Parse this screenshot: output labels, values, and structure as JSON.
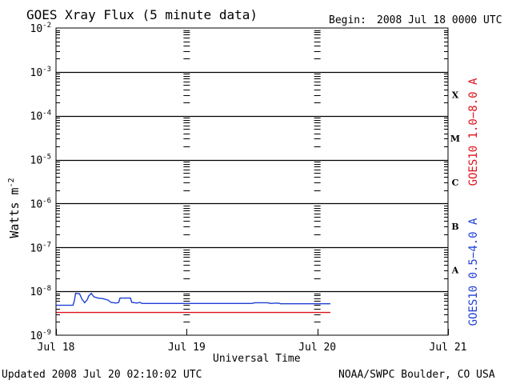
{
  "header": {
    "title": "GOES Xray Flux (5 minute data)",
    "begin_label": "Begin:",
    "begin_value": "2008 Jul 18 0000 UTC"
  },
  "footer": {
    "updated": "Updated 2008 Jul 20 02:10:02 UTC",
    "credit": "NOAA/SWPC Boulder, CO USA"
  },
  "colors": {
    "long_channel": "#e0101a",
    "short_channel": "#1f3fd6",
    "axis": "#000000"
  },
  "chart_data": {
    "type": "line",
    "xlabel": "Universal Time",
    "ylabel": "Watts m",
    "ylabel_superscript": "-2",
    "y_scale": "log",
    "ylim": [
      1e-09,
      0.01
    ],
    "xlim": [
      0,
      3
    ],
    "x_unit": "days since 2008 Jul 18 0000 UTC",
    "grid": "horizontal at each decade",
    "y_ticks": [
      {
        "base": "10",
        "exp": "-9",
        "value": 1e-09
      },
      {
        "base": "10",
        "exp": "-8",
        "value": 1e-08
      },
      {
        "base": "10",
        "exp": "-7",
        "value": 1e-07
      },
      {
        "base": "10",
        "exp": "-6",
        "value": 1e-06
      },
      {
        "base": "10",
        "exp": "-5",
        "value": 1e-05
      },
      {
        "base": "10",
        "exp": "-4",
        "value": 0.0001
      },
      {
        "base": "10",
        "exp": "-3",
        "value": 0.001
      },
      {
        "base": "10",
        "exp": "-2",
        "value": 0.01
      }
    ],
    "x_ticks": [
      {
        "label": "Jul 18",
        "value": 0
      },
      {
        "label": "Jul 19",
        "value": 1
      },
      {
        "label": "Jul 20",
        "value": 2
      },
      {
        "label": "Jul 21",
        "value": 3
      }
    ],
    "flare_classes": [
      {
        "label": "A",
        "value": 3.16e-08
      },
      {
        "label": "B",
        "value": 3.16e-07
      },
      {
        "label": "C",
        "value": 3.16e-06
      },
      {
        "label": "M",
        "value": 3.16e-05
      },
      {
        "label": "X",
        "value": 0.000316
      }
    ],
    "series": [
      {
        "name": "GOES10 1.0−8.0 A",
        "color": "#e0101a",
        "points": [
          [
            0.0,
            3.3e-09
          ],
          [
            2.1,
            3.3e-09
          ]
        ]
      },
      {
        "name": "GOES10 0.5−4.0 A",
        "color": "#1f3fd6",
        "points": [
          [
            0.0,
            4.8e-09
          ],
          [
            0.13,
            4.8e-09
          ],
          [
            0.14,
            6e-09
          ],
          [
            0.15,
            9e-09
          ],
          [
            0.18,
            8.8e-09
          ],
          [
            0.2,
            6.5e-09
          ],
          [
            0.22,
            5.5e-09
          ],
          [
            0.24,
            6.5e-09
          ],
          [
            0.25,
            7.8e-09
          ],
          [
            0.27,
            9e-09
          ],
          [
            0.29,
            7.5e-09
          ],
          [
            0.32,
            7e-09
          ],
          [
            0.36,
            6.8e-09
          ],
          [
            0.4,
            6.3e-09
          ],
          [
            0.42,
            5.6e-09
          ],
          [
            0.46,
            5.4e-09
          ],
          [
            0.48,
            5.6e-09
          ],
          [
            0.49,
            7e-09
          ],
          [
            0.57,
            7e-09
          ],
          [
            0.58,
            5.6e-09
          ],
          [
            0.62,
            5.4e-09
          ],
          [
            0.64,
            5.6e-09
          ],
          [
            0.66,
            5.3e-09
          ],
          [
            1.5,
            5.3e-09
          ],
          [
            1.52,
            5.5e-09
          ],
          [
            1.62,
            5.5e-09
          ],
          [
            1.64,
            5.3e-09
          ],
          [
            1.7,
            5.4e-09
          ],
          [
            1.72,
            5.2e-09
          ],
          [
            2.1,
            5.2e-09
          ]
        ]
      }
    ]
  }
}
